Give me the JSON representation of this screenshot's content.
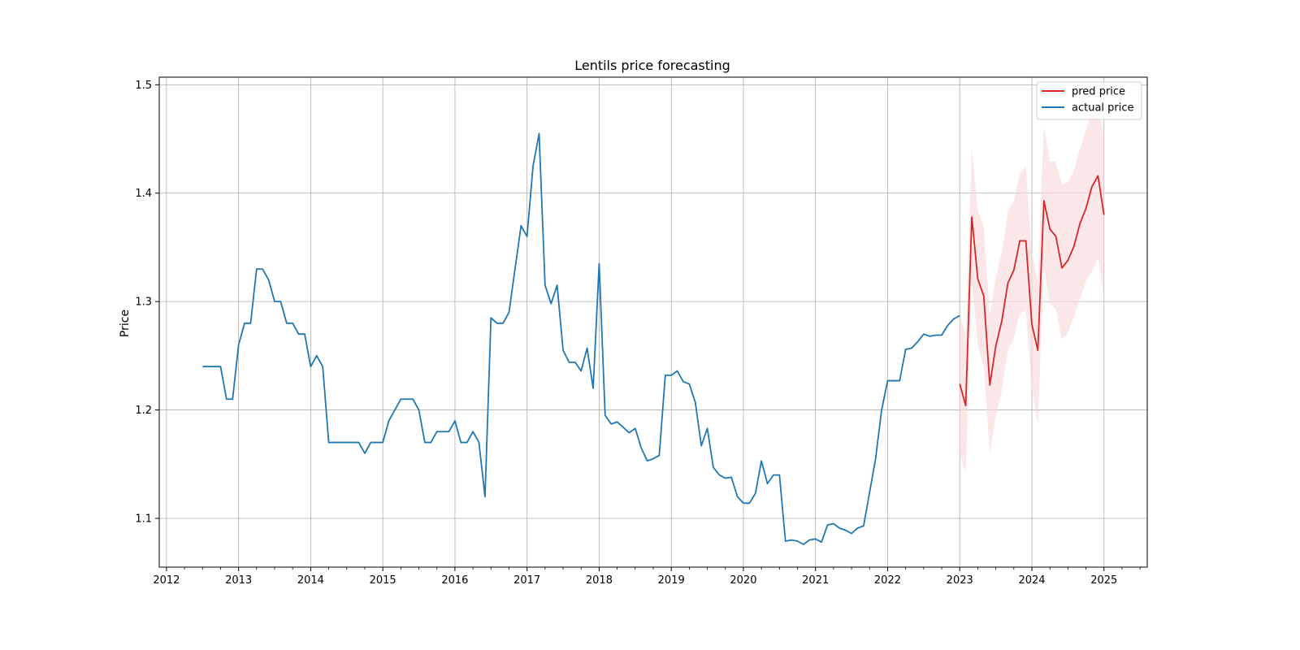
{
  "chart_data": {
    "type": "line",
    "title": "Lentils price forecasting",
    "xlabel": "",
    "ylabel": "Price",
    "xlim": [
      2011.9,
      2025.6
    ],
    "ylim": [
      1.055,
      1.507
    ],
    "x_ticks": [
      2012,
      2013,
      2014,
      2015,
      2016,
      2017,
      2018,
      2019,
      2020,
      2021,
      2022,
      2023,
      2024,
      2025
    ],
    "y_ticks": [
      1.1,
      1.2,
      1.3,
      1.4,
      1.5
    ],
    "y_tick_labels": [
      "1.1",
      "1.2",
      "1.3",
      "1.4",
      "1.5"
    ],
    "grid": true,
    "legend_position": "top-right",
    "colors": {
      "actual": "#1f77b4",
      "pred": "#d62728",
      "band": "#f8d7d8"
    },
    "series": [
      {
        "name": "actual price",
        "color": "#1f77b4",
        "x": [
          2012.5,
          2012.583,
          2012.667,
          2012.75,
          2012.833,
          2012.917,
          2013.0,
          2013.083,
          2013.167,
          2013.25,
          2013.333,
          2013.417,
          2013.5,
          2013.583,
          2013.667,
          2013.75,
          2013.833,
          2013.917,
          2014.0,
          2014.083,
          2014.167,
          2014.25,
          2014.333,
          2014.417,
          2014.5,
          2014.583,
          2014.667,
          2014.75,
          2014.833,
          2014.917,
          2015.0,
          2015.083,
          2015.167,
          2015.25,
          2015.333,
          2015.417,
          2015.5,
          2015.583,
          2015.667,
          2015.75,
          2015.833,
          2015.917,
          2016.0,
          2016.083,
          2016.167,
          2016.25,
          2016.333,
          2016.417,
          2016.5,
          2016.583,
          2016.667,
          2016.75,
          2016.833,
          2016.917,
          2017.0,
          2017.083,
          2017.167,
          2017.25,
          2017.333,
          2017.417,
          2017.5,
          2017.583,
          2017.667,
          2017.75,
          2017.833,
          2017.917,
          2018.0,
          2018.083,
          2018.167,
          2018.25,
          2018.333,
          2018.417,
          2018.5,
          2018.583,
          2018.667,
          2018.75,
          2018.833,
          2018.917,
          2019.0,
          2019.083,
          2019.167,
          2019.25,
          2019.333,
          2019.417,
          2019.5,
          2019.583,
          2019.667,
          2019.75,
          2019.833,
          2019.917,
          2020.0,
          2020.083,
          2020.167,
          2020.25,
          2020.333,
          2020.417,
          2020.5,
          2020.583,
          2020.667,
          2020.75,
          2020.833,
          2020.917,
          2021.0,
          2021.083,
          2021.167,
          2021.25,
          2021.333,
          2021.417,
          2021.5,
          2021.583,
          2021.667,
          2021.75,
          2021.833,
          2021.917,
          2022.0,
          2022.083,
          2022.167,
          2022.25,
          2022.333,
          2022.417,
          2022.5,
          2022.583,
          2022.667,
          2022.75,
          2022.833,
          2022.917,
          2023.0
        ],
        "values": [
          1.24,
          1.24,
          1.24,
          1.24,
          1.21,
          1.21,
          1.26,
          1.28,
          1.28,
          1.33,
          1.33,
          1.32,
          1.3,
          1.3,
          1.28,
          1.28,
          1.27,
          1.27,
          1.24,
          1.25,
          1.24,
          1.17,
          1.17,
          1.17,
          1.17,
          1.17,
          1.17,
          1.16,
          1.17,
          1.17,
          1.17,
          1.19,
          1.2,
          1.21,
          1.21,
          1.21,
          1.2,
          1.17,
          1.17,
          1.18,
          1.18,
          1.18,
          1.19,
          1.17,
          1.17,
          1.18,
          1.17,
          1.12,
          1.285,
          1.28,
          1.28,
          1.29,
          1.33,
          1.37,
          1.36,
          1.425,
          1.455,
          1.315,
          1.298,
          1.315,
          1.255,
          1.244,
          1.244,
          1.236,
          1.257,
          1.22,
          1.335,
          1.195,
          1.187,
          1.189,
          1.184,
          1.179,
          1.183,
          1.165,
          1.153,
          1.155,
          1.158,
          1.232,
          1.232,
          1.236,
          1.226,
          1.224,
          1.207,
          1.167,
          1.183,
          1.147,
          1.14,
          1.137,
          1.138,
          1.12,
          1.114,
          1.114,
          1.123,
          1.153,
          1.132,
          1.14,
          1.14,
          1.079,
          1.08,
          1.079,
          1.076,
          1.08,
          1.081,
          1.078,
          1.094,
          1.095,
          1.091,
          1.089,
          1.086,
          1.091,
          1.093,
          1.124,
          1.155,
          1.2,
          1.227,
          1.227,
          1.227,
          1.256,
          1.257,
          1.263,
          1.27,
          1.268,
          1.269,
          1.269,
          1.278,
          1.284,
          1.287
        ]
      },
      {
        "name": "pred price",
        "color": "#d62728",
        "x": [
          2023.0,
          2023.083,
          2023.167,
          2023.25,
          2023.333,
          2023.417,
          2023.5,
          2023.583,
          2023.667,
          2023.75,
          2023.833,
          2023.917,
          2024.0,
          2024.083,
          2024.167,
          2024.25,
          2024.333,
          2024.417,
          2024.5,
          2024.583,
          2024.667,
          2024.75,
          2024.833,
          2024.917,
          2025.0
        ],
        "values": [
          1.224,
          1.204,
          1.378,
          1.321,
          1.305,
          1.223,
          1.259,
          1.282,
          1.317,
          1.329,
          1.356,
          1.356,
          1.279,
          1.255,
          1.393,
          1.367,
          1.36,
          1.331,
          1.338,
          1.351,
          1.372,
          1.386,
          1.406,
          1.416,
          1.38
        ],
        "lower": [
          1.16,
          1.142,
          1.318,
          1.26,
          1.24,
          1.159,
          1.195,
          1.218,
          1.255,
          1.266,
          1.289,
          1.292,
          1.218,
          1.187,
          1.33,
          1.298,
          1.293,
          1.265,
          1.271,
          1.286,
          1.303,
          1.319,
          1.328,
          1.34,
          1.306
        ],
        "upper": [
          1.289,
          1.268,
          1.442,
          1.385,
          1.369,
          1.287,
          1.323,
          1.345,
          1.383,
          1.393,
          1.418,
          1.425,
          1.343,
          1.32,
          1.462,
          1.429,
          1.429,
          1.408,
          1.41,
          1.421,
          1.441,
          1.458,
          1.476,
          1.48,
          1.453
        ]
      }
    ]
  }
}
